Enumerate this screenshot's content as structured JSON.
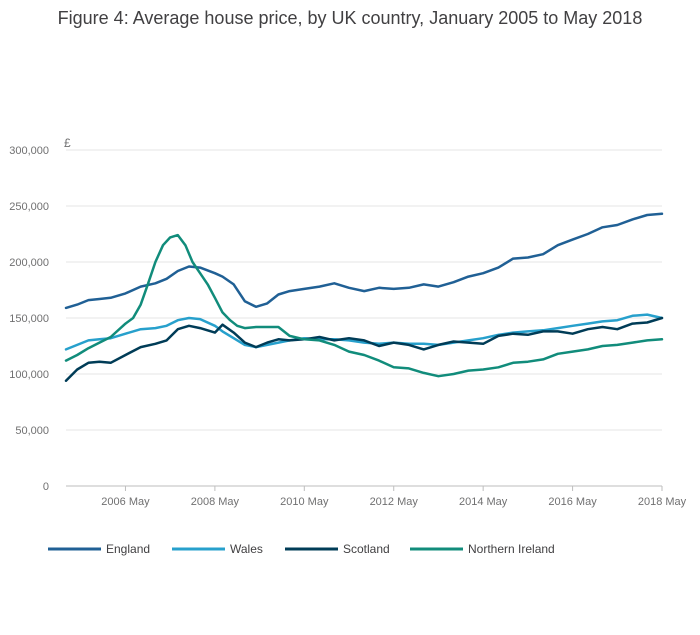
{
  "chart_data": {
    "type": "line",
    "title": "Figure 4: Average house price, by UK country, January 2005 to May 2018",
    "ylabel": "£",
    "xlabel": "",
    "ylim": [
      0,
      300000
    ],
    "xlim": [
      2005.0,
      2018.33
    ],
    "y_ticks": [
      0,
      50000,
      100000,
      150000,
      200000,
      250000,
      300000
    ],
    "y_tick_labels": [
      "0",
      "50,000",
      "100,000",
      "150,000",
      "200,000",
      "250,000",
      "300,000"
    ],
    "x_ticks": [
      2006.33,
      2008.33,
      2010.33,
      2012.33,
      2014.33,
      2016.33,
      2018.33
    ],
    "x_tick_labels": [
      "2006 May",
      "2008 May",
      "2010 May",
      "2012 May",
      "2014 May",
      "2016 May",
      "2018 May"
    ],
    "grid": true,
    "legend_position": "bottom",
    "series": [
      {
        "name": "England",
        "color": "#206095",
        "x": [
          2005.0,
          2005.25,
          2005.5,
          2005.75,
          2006.0,
          2006.33,
          2006.67,
          2007.0,
          2007.25,
          2007.5,
          2007.75,
          2008.0,
          2008.33,
          2008.5,
          2008.75,
          2009.0,
          2009.25,
          2009.5,
          2009.75,
          2010.0,
          2010.33,
          2010.67,
          2011.0,
          2011.33,
          2011.67,
          2012.0,
          2012.33,
          2012.67,
          2013.0,
          2013.33,
          2013.67,
          2014.0,
          2014.33,
          2014.67,
          2015.0,
          2015.33,
          2015.67,
          2016.0,
          2016.33,
          2016.67,
          2017.0,
          2017.33,
          2017.67,
          2018.0,
          2018.33
        ],
        "values": [
          159000,
          162000,
          166000,
          167000,
          168000,
          172000,
          178000,
          181000,
          185000,
          192000,
          196000,
          195000,
          190000,
          187000,
          180000,
          165000,
          160000,
          163000,
          171000,
          174000,
          176000,
          178000,
          181000,
          177000,
          174000,
          177000,
          176000,
          177000,
          180000,
          178000,
          182000,
          187000,
          190000,
          195000,
          203000,
          204000,
          207000,
          215000,
          220000,
          225000,
          231000,
          233000,
          238000,
          242000,
          243000
        ]
      },
      {
        "name": "Wales",
        "color": "#27a0cc",
        "x": [
          2005.0,
          2005.25,
          2005.5,
          2005.75,
          2006.0,
          2006.33,
          2006.67,
          2007.0,
          2007.25,
          2007.5,
          2007.75,
          2008.0,
          2008.33,
          2008.5,
          2008.75,
          2009.0,
          2009.25,
          2009.5,
          2009.75,
          2010.0,
          2010.33,
          2010.67,
          2011.0,
          2011.33,
          2011.67,
          2012.0,
          2012.33,
          2012.67,
          2013.0,
          2013.33,
          2013.67,
          2014.0,
          2014.33,
          2014.67,
          2015.0,
          2015.33,
          2015.67,
          2016.0,
          2016.33,
          2016.67,
          2017.0,
          2017.33,
          2017.67,
          2018.0,
          2018.33
        ],
        "values": [
          122000,
          126000,
          130000,
          131000,
          132000,
          136000,
          140000,
          141000,
          143000,
          148000,
          150000,
          149000,
          143000,
          138000,
          132000,
          126000,
          124000,
          126000,
          128000,
          130000,
          132000,
          131000,
          131000,
          130000,
          128000,
          127000,
          128000,
          127000,
          127000,
          126000,
          128000,
          130000,
          132000,
          135000,
          137000,
          138000,
          139000,
          141000,
          143000,
          145000,
          147000,
          148000,
          152000,
          153000,
          150000
        ]
      },
      {
        "name": "Scotland",
        "color": "#003c57",
        "x": [
          2005.0,
          2005.25,
          2005.5,
          2005.75,
          2006.0,
          2006.33,
          2006.67,
          2007.0,
          2007.25,
          2007.5,
          2007.75,
          2008.0,
          2008.33,
          2008.5,
          2008.75,
          2009.0,
          2009.25,
          2009.5,
          2009.75,
          2010.0,
          2010.33,
          2010.67,
          2011.0,
          2011.33,
          2011.67,
          2012.0,
          2012.33,
          2012.67,
          2013.0,
          2013.33,
          2013.67,
          2014.0,
          2014.33,
          2014.67,
          2015.0,
          2015.33,
          2015.67,
          2016.0,
          2016.33,
          2016.67,
          2017.0,
          2017.33,
          2017.67,
          2018.0,
          2018.33
        ],
        "values": [
          94000,
          104000,
          110000,
          111000,
          110000,
          117000,
          124000,
          127000,
          130000,
          140000,
          143000,
          141000,
          137000,
          144000,
          137000,
          128000,
          124000,
          128000,
          131000,
          130000,
          131000,
          133000,
          130000,
          132000,
          130000,
          125000,
          128000,
          126000,
          122000,
          126000,
          129000,
          128000,
          127000,
          134000,
          136000,
          135000,
          138000,
          138000,
          136000,
          140000,
          142000,
          140000,
          145000,
          146000,
          150000
        ]
      },
      {
        "name": "Northern Ireland",
        "color": "#118c7b",
        "x": [
          2005.0,
          2005.25,
          2005.5,
          2005.75,
          2006.0,
          2006.33,
          2006.5,
          2006.67,
          2006.83,
          2007.0,
          2007.17,
          2007.33,
          2007.5,
          2007.67,
          2007.83,
          2008.0,
          2008.17,
          2008.33,
          2008.5,
          2008.67,
          2008.83,
          2009.0,
          2009.25,
          2009.5,
          2009.75,
          2010.0,
          2010.33,
          2010.67,
          2011.0,
          2011.33,
          2011.67,
          2012.0,
          2012.33,
          2012.67,
          2013.0,
          2013.33,
          2013.67,
          2014.0,
          2014.33,
          2014.67,
          2015.0,
          2015.33,
          2015.67,
          2016.0,
          2016.33,
          2016.67,
          2017.0,
          2017.33,
          2017.67,
          2018.0,
          2018.33
        ],
        "values": [
          112000,
          117000,
          123000,
          128000,
          133000,
          145000,
          150000,
          162000,
          180000,
          200000,
          215000,
          222000,
          224000,
          215000,
          200000,
          190000,
          180000,
          168000,
          155000,
          148000,
          143000,
          141000,
          142000,
          142000,
          142000,
          134000,
          131000,
          130000,
          126000,
          120000,
          117000,
          112000,
          106000,
          105000,
          101000,
          98000,
          100000,
          103000,
          104000,
          106000,
          110000,
          111000,
          113000,
          118000,
          120000,
          122000,
          125000,
          126000,
          128000,
          130000,
          131000
        ]
      }
    ]
  }
}
